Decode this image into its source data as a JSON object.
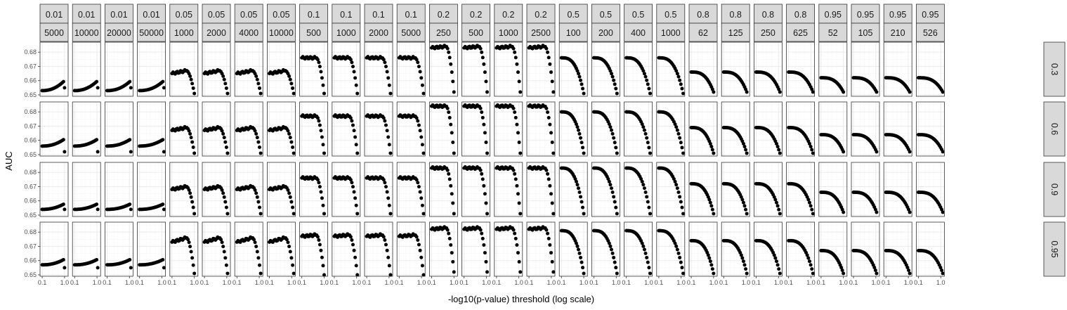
{
  "chart_data": {
    "type": "scatter",
    "xlabel": "-log10(p-value) threshold (log scale)",
    "ylabel": "AUC",
    "xscale": "log",
    "xlim": [
      0.08,
      1.45
    ],
    "ylim": [
      0.649,
      0.687
    ],
    "x_ticks": [
      0.1,
      1.0
    ],
    "x_tick_labels": [
      "0.1",
      "1.0"
    ],
    "y_ticks": [
      0.65,
      0.66,
      0.67,
      0.68
    ],
    "y_tick_labels": [
      "0.65",
      "0.66",
      "0.67",
      "0.68"
    ],
    "grid": true,
    "facet_cols": [
      {
        "top": "0.01",
        "bottom": "5000"
      },
      {
        "top": "0.01",
        "bottom": "10000"
      },
      {
        "top": "0.01",
        "bottom": "20000"
      },
      {
        "top": "0.01",
        "bottom": "50000"
      },
      {
        "top": "0.05",
        "bottom": "1000"
      },
      {
        "top": "0.05",
        "bottom": "2000"
      },
      {
        "top": "0.05",
        "bottom": "4000"
      },
      {
        "top": "0.05",
        "bottom": "10000"
      },
      {
        "top": "0.1",
        "bottom": "500"
      },
      {
        "top": "0.1",
        "bottom": "1000"
      },
      {
        "top": "0.1",
        "bottom": "2000"
      },
      {
        "top": "0.1",
        "bottom": "5000"
      },
      {
        "top": "0.2",
        "bottom": "250"
      },
      {
        "top": "0.2",
        "bottom": "500"
      },
      {
        "top": "0.2",
        "bottom": "1000"
      },
      {
        "top": "0.2",
        "bottom": "2500"
      },
      {
        "top": "0.5",
        "bottom": "100"
      },
      {
        "top": "0.5",
        "bottom": "200"
      },
      {
        "top": "0.5",
        "bottom": "400"
      },
      {
        "top": "0.5",
        "bottom": "1000"
      },
      {
        "top": "0.8",
        "bottom": "62"
      },
      {
        "top": "0.8",
        "bottom": "125"
      },
      {
        "top": "0.8",
        "bottom": "250"
      },
      {
        "top": "0.8",
        "bottom": "625"
      },
      {
        "top": "0.95",
        "bottom": "52"
      },
      {
        "top": "0.95",
        "bottom": "105"
      },
      {
        "top": "0.95",
        "bottom": "210"
      },
      {
        "top": "0.95",
        "bottom": "526"
      }
    ],
    "facet_rows": [
      "0.3",
      "0.6",
      "0.9",
      "0.95"
    ],
    "panel_curves": {
      "description_of_values": "approximate AUC at the start (x=0.1), mid plateau, and final values of each panel; groups of 4 columns share a shape",
      "column_groups": [
        {
          "columns": [
            0,
            1,
            2,
            3
          ],
          "shape": "rise",
          "rows": [
            {
              "start": 0.653,
              "peak": 0.66,
              "end": 0.655
            },
            {
              "start": 0.656,
              "peak": 0.661,
              "end": 0.652
            },
            {
              "start": 0.654,
              "peak": 0.658,
              "end": 0.654
            },
            {
              "start": 0.657,
              "peak": 0.661,
              "end": 0.655
            }
          ]
        },
        {
          "columns": [
            4,
            5,
            6,
            7
          ],
          "shape": "plateau-drop",
          "rows": [
            {
              "start": 0.665,
              "plateau": 0.667,
              "end": 0.651
            },
            {
              "start": 0.667,
              "plateau": 0.669,
              "end": 0.651
            },
            {
              "start": 0.668,
              "plateau": 0.67,
              "end": 0.651
            },
            {
              "start": 0.673,
              "plateau": 0.676,
              "end": 0.651
            }
          ]
        },
        {
          "columns": [
            8,
            9,
            10,
            11
          ],
          "shape": "plateau-drop",
          "rows": [
            {
              "start": 0.676,
              "plateau": 0.676,
              "end": 0.651
            },
            {
              "start": 0.677,
              "plateau": 0.677,
              "end": 0.651
            },
            {
              "start": 0.676,
              "plateau": 0.676,
              "end": 0.651
            },
            {
              "start": 0.677,
              "plateau": 0.678,
              "end": 0.65
            }
          ]
        },
        {
          "columns": [
            12,
            13,
            14,
            15
          ],
          "shape": "plateau-drop",
          "rows": [
            {
              "start": 0.683,
              "plateau": 0.684,
              "end": 0.652
            },
            {
              "start": 0.684,
              "plateau": 0.684,
              "end": 0.651
            },
            {
              "start": 0.683,
              "plateau": 0.683,
              "end": 0.651
            },
            {
              "start": 0.682,
              "plateau": 0.683,
              "end": 0.652
            }
          ]
        },
        {
          "columns": [
            16,
            17,
            18,
            19
          ],
          "shape": "decline",
          "rows": [
            {
              "start": 0.676,
              "end": 0.651
            },
            {
              "start": 0.68,
              "end": 0.651
            },
            {
              "start": 0.683,
              "end": 0.651
            },
            {
              "start": 0.681,
              "end": 0.651
            }
          ]
        },
        {
          "columns": [
            20,
            21,
            22,
            23
          ],
          "shape": "decline",
          "rows": [
            {
              "start": 0.666,
              "end": 0.652
            },
            {
              "start": 0.669,
              "end": 0.651
            },
            {
              "start": 0.672,
              "end": 0.651
            },
            {
              "start": 0.674,
              "end": 0.651
            }
          ]
        },
        {
          "columns": [
            24,
            25,
            26,
            27
          ],
          "shape": "decline",
          "rows": [
            {
              "start": 0.662,
              "end": 0.652
            },
            {
              "start": 0.664,
              "end": 0.652
            },
            {
              "start": 0.666,
              "end": 0.652
            },
            {
              "start": 0.667,
              "end": 0.651
            }
          ]
        }
      ]
    },
    "colors": {
      "point": "#000000",
      "strip_bg": "#d9d9d9",
      "strip_border": "#333333",
      "panel_border": "#333333",
      "grid_major": "#ebebeb",
      "grid_minor": "#f5f5f5"
    }
  }
}
